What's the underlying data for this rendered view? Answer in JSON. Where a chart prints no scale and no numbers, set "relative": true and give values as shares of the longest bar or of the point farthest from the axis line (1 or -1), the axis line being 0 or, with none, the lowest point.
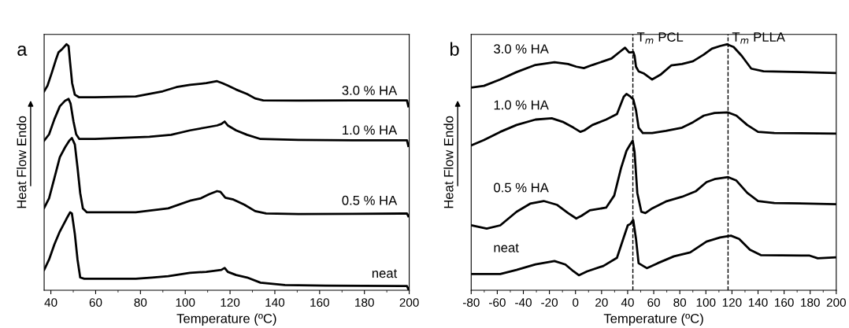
{
  "chart_data": [
    {
      "type": "line",
      "title": "a",
      "xlabel": "Temperature (ºC)",
      "ylabel": "Heat Flow Endo",
      "relative": true,
      "xlim": [
        37,
        200
      ],
      "xticks": [
        40,
        60,
        80,
        100,
        120,
        140,
        160,
        180,
        200
      ],
      "tick_labels": "x",
      "series": [
        {
          "name": "3.0 % HA",
          "color": "#000000",
          "x": [
            37.0,
            38.5,
            40.4,
            42.2,
            43.4,
            45.2,
            47.0,
            47.9,
            48.6,
            49.5,
            50.7,
            52.5,
            59.7,
            77.9,
            90.0,
            96.1,
            102.1,
            109.4,
            114.2,
            116.6,
            119.0,
            122.7,
            127.6,
            131.2,
            134.8,
            150.6,
            174.8,
            199.0,
            199.6
          ],
          "values": [
            0.809,
            0.832,
            0.884,
            0.936,
            0.967,
            0.982,
            1.0,
            0.993,
            0.925,
            0.842,
            0.795,
            0.785,
            0.785,
            0.788,
            0.809,
            0.826,
            0.835,
            0.842,
            0.85,
            0.842,
            0.832,
            0.816,
            0.798,
            0.78,
            0.772,
            0.771,
            0.772,
            0.772,
            0.748
          ]
        },
        {
          "name": "1.0 % HA",
          "color": "#000000",
          "x": [
            37.0,
            39.2,
            41.6,
            44.0,
            46.4,
            47.9,
            48.8,
            50.1,
            51.3,
            52.7,
            59.7,
            84.0,
            93.7,
            102.1,
            109.4,
            114.2,
            116.1,
            117.6,
            119.0,
            122.7,
            127.6,
            133.6,
            150.6,
            174.8,
            199.0,
            199.6
          ],
          "values": [
            0.608,
            0.634,
            0.696,
            0.748,
            0.771,
            0.778,
            0.759,
            0.686,
            0.634,
            0.615,
            0.615,
            0.624,
            0.632,
            0.65,
            0.662,
            0.67,
            0.676,
            0.686,
            0.67,
            0.65,
            0.632,
            0.615,
            0.611,
            0.61,
            0.61,
            0.587
          ]
        },
        {
          "name": "0.5 % HA",
          "color": "#000000",
          "x": [
            37.0,
            39.2,
            41.6,
            44.0,
            46.4,
            48.2,
            49.4,
            50.7,
            51.9,
            53.1,
            54.3,
            56.1,
            77.9,
            92.4,
            102.1,
            107.0,
            110.6,
            114.2,
            115.7,
            117.9,
            121.5,
            126.4,
            131.2,
            136.1,
            150.6,
            174.8,
            199.0,
            199.6
          ],
          "values": [
            0.335,
            0.374,
            0.457,
            0.541,
            0.582,
            0.608,
            0.619,
            0.593,
            0.499,
            0.395,
            0.333,
            0.317,
            0.317,
            0.333,
            0.364,
            0.374,
            0.39,
            0.403,
            0.4,
            0.376,
            0.369,
            0.348,
            0.322,
            0.312,
            0.31,
            0.311,
            0.312,
            0.301
          ]
        },
        {
          "name": "neat",
          "color": "#000000",
          "x": [
            37.0,
            39.2,
            41.6,
            44.0,
            47.0,
            48.6,
            49.4,
            50.7,
            51.9,
            53.1,
            54.9,
            77.9,
            85.2,
            92.4,
            102.1,
            109.4,
            116.1,
            117.6,
            119.0,
            122.7,
            127.6,
            133.6,
            144.5,
            162.7,
            199.0,
            199.6
          ],
          "values": [
            0.083,
            0.125,
            0.187,
            0.239,
            0.291,
            0.317,
            0.312,
            0.229,
            0.125,
            0.052,
            0.047,
            0.047,
            0.052,
            0.057,
            0.071,
            0.075,
            0.083,
            0.091,
            0.075,
            0.062,
            0.052,
            0.031,
            0.021,
            0.019,
            0.017,
            0.005
          ]
        }
      ]
    },
    {
      "type": "line",
      "title": "b",
      "xlabel": "Temperature (ºC)",
      "ylabel": "Heat Flow Endo",
      "relative": true,
      "xlim": [
        -80,
        200
      ],
      "xticks": [
        -80,
        -60,
        -40,
        -20,
        0,
        20,
        40,
        60,
        80,
        100,
        120,
        140,
        160,
        180,
        200
      ],
      "tick_labels": "x",
      "ref_lines": [
        {
          "axis": "x",
          "value": 44,
          "label": "T$_{m}$ PCL",
          "color": "#000000",
          "line_style": "dashed"
        },
        {
          "axis": "x",
          "value": 117,
          "label": "T$_{m}$ PLLA",
          "color": "#000000",
          "line_style": "dashed"
        }
      ],
      "series": [
        {
          "name": "3.0 % HA",
          "color": "#000000",
          "x": [
            -80,
            -70.2,
            -57.7,
            -45.2,
            -30.7,
            -16.1,
            -5.7,
            0.6,
            6.4,
            13.0,
            21.4,
            27.6,
            33.9,
            38.0,
            41.1,
            42.6,
            44.3,
            45.3,
            46.4,
            48.4,
            52.6,
            58.8,
            65.1,
            73.4,
            81.7,
            90.1,
            98.4,
            104.6,
            110.9,
            116.1,
            121.3,
            127.5,
            134.8,
            144.2,
            173.3,
            200
          ],
          "values": [
            0.824,
            0.831,
            0.857,
            0.887,
            0.916,
            0.927,
            0.92,
            0.909,
            0.903,
            0.916,
            0.931,
            0.942,
            0.969,
            0.986,
            0.967,
            0.967,
            0.969,
            0.953,
            0.909,
            0.89,
            0.881,
            0.857,
            0.876,
            0.914,
            0.92,
            0.931,
            0.958,
            0.982,
            0.993,
            1.0,
            0.989,
            0.953,
            0.901,
            0.89,
            0.887,
            0.883
          ]
        },
        {
          "name": "1.0 % HA",
          "color": "#000000",
          "x": [
            -80,
            -70.2,
            -57.7,
            -45.2,
            -30.7,
            -18.2,
            -9.9,
            -1.5,
            3.7,
            6.8,
            13.0,
            23.5,
            31.8,
            37.0,
            39.1,
            42.2,
            44.3,
            46.4,
            48.4,
            51.6,
            58.8,
            69.3,
            81.7,
            90.1,
            98.4,
            106.7,
            117.1,
            123.4,
            131.7,
            140.0,
            152.5,
            200
          ],
          "values": [
            0.589,
            0.611,
            0.644,
            0.672,
            0.694,
            0.699,
            0.685,
            0.661,
            0.644,
            0.65,
            0.672,
            0.694,
            0.716,
            0.787,
            0.798,
            0.787,
            0.776,
            0.732,
            0.661,
            0.639,
            0.639,
            0.648,
            0.661,
            0.683,
            0.71,
            0.721,
            0.723,
            0.71,
            0.672,
            0.644,
            0.639,
            0.637
          ]
        },
        {
          "name": "0.5 % HA",
          "color": "#000000",
          "x": [
            -80,
            -68.1,
            -57.7,
            -45.2,
            -34.8,
            -24.4,
            -14.0,
            -5.7,
            0.6,
            4.7,
            11.0,
            23.5,
            29.7,
            34.9,
            39.1,
            42.2,
            43.9,
            45.3,
            47.4,
            50.5,
            53.6,
            58.8,
            69.3,
            81.7,
            92.1,
            100.5,
            106.7,
            117.1,
            123.4,
            131.7,
            140.0,
            152.5,
            200
          ],
          "values": [
            0.264,
            0.251,
            0.264,
            0.319,
            0.352,
            0.363,
            0.347,
            0.314,
            0.292,
            0.303,
            0.325,
            0.336,
            0.385,
            0.496,
            0.567,
            0.595,
            0.608,
            0.562,
            0.396,
            0.319,
            0.314,
            0.333,
            0.361,
            0.38,
            0.402,
            0.44,
            0.452,
            0.46,
            0.446,
            0.396,
            0.363,
            0.355,
            0.35
          ]
        },
        {
          "name": "neat",
          "color": "#000000",
          "x": [
            -80,
            -57.7,
            -45.2,
            -30.7,
            -16.1,
            -7.8,
            -1.5,
            2.6,
            8.9,
            21.4,
            31.8,
            37.0,
            40.1,
            42.2,
            44.3,
            46.4,
            48.4,
            54.7,
            63.0,
            75.5,
            88.0,
            100.5,
            110.9,
            119.2,
            125.5,
            133.8,
            142.1,
            179.6,
            185.8,
            200
          ],
          "values": [
            0.066,
            0.066,
            0.083,
            0.105,
            0.119,
            0.105,
            0.077,
            0.061,
            0.077,
            0.099,
            0.132,
            0.215,
            0.264,
            0.27,
            0.286,
            0.209,
            0.11,
            0.09,
            0.11,
            0.138,
            0.154,
            0.198,
            0.215,
            0.222,
            0.209,
            0.165,
            0.143,
            0.141,
            0.13,
            0.134
          ]
        }
      ]
    }
  ]
}
